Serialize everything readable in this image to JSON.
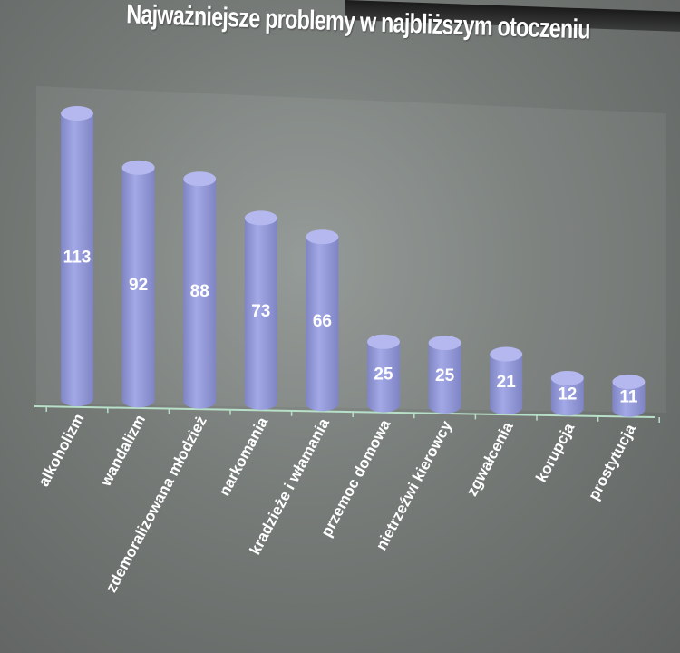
{
  "chart_data": {
    "type": "bar",
    "style": "3d-cylinder",
    "title": "Najważniejsze problemy w najbliższym otoczeniu",
    "categories": [
      "alkoholizm",
      "wandalizm",
      "zdemoralizowana młodzież",
      "narkomania",
      "kradzieże i włamania",
      "przemoc domowa",
      "nietrzeźwi kierowcy",
      "zgwałcenia",
      "korupcja",
      "prostytucja"
    ],
    "values": [
      113,
      92,
      88,
      73,
      66,
      25,
      25,
      21,
      12,
      11
    ],
    "data_labels": [
      "113",
      "92",
      "88",
      "73",
      "66",
      "25",
      "25",
      "21",
      "12",
      "11"
    ],
    "xlabel": "",
    "ylabel": "",
    "ylim": [
      0,
      120
    ],
    "grid": false,
    "legend": "none",
    "colors": {
      "bar": "#a3a8e6",
      "bar_shade": "#7f84c4",
      "axis": "#b8e0c8",
      "background": "#7a7f7c"
    }
  }
}
